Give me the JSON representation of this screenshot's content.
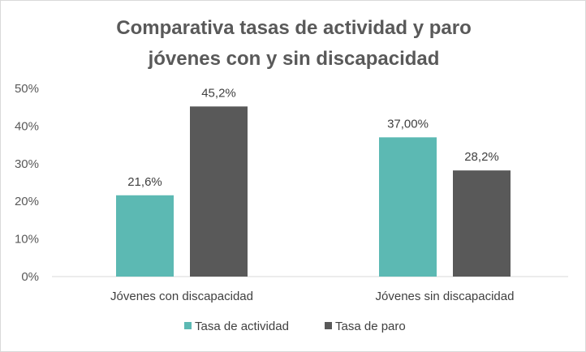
{
  "chart_data": {
    "type": "bar",
    "title_lines": [
      "Comparativa tasas de actividad y paro",
      "jóvenes con y sin discapacidad"
    ],
    "categories": [
      "Jóvenes con discapacidad",
      "Jóvenes sin discapacidad"
    ],
    "series": [
      {
        "name": "Tasa de actividad",
        "values": [
          21.6,
          37.0
        ],
        "labels": [
          "21,6%",
          "37,00%"
        ],
        "color": "#5cb9b3"
      },
      {
        "name": "Tasa de paro",
        "values": [
          45.2,
          28.2
        ],
        "labels": [
          "45,2%",
          "28,2%"
        ],
        "color": "#595959"
      }
    ],
    "ylim": [
      0,
      50
    ],
    "yticks": [
      0,
      10,
      20,
      30,
      40,
      50
    ],
    "ytick_labels": [
      "0%",
      "10%",
      "20%",
      "30%",
      "40%",
      "50%"
    ],
    "grid": false,
    "legend_position": "bottom"
  }
}
